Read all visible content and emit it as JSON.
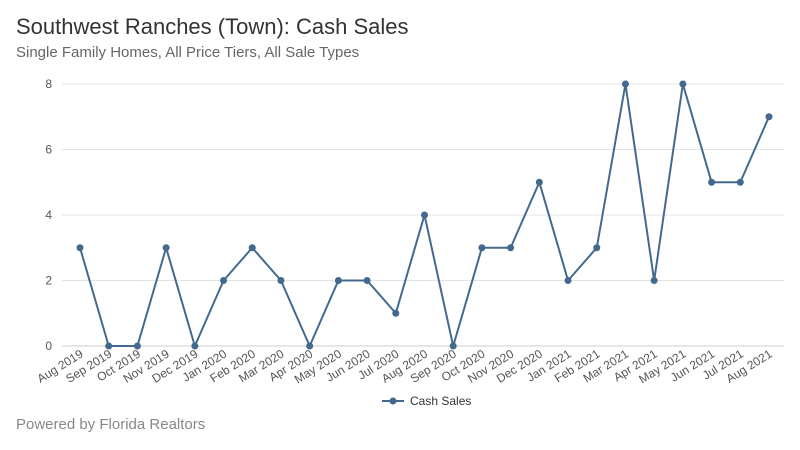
{
  "header": {
    "title": "Southwest Ranches (Town): Cash Sales",
    "subtitle": "Single Family Homes, All Price Tiers, All Sale Types"
  },
  "footer": {
    "text": "Powered by Florida Realtors"
  },
  "colors": {
    "series": "#44698f",
    "grid": "#e3e3e3",
    "axis": "#cccccc"
  },
  "chart_data": {
    "type": "line",
    "title": "Southwest Ranches (Town): Cash Sales",
    "subtitle": "Single Family Homes, All Price Tiers, All Sale Types",
    "xlabel": "",
    "ylabel": "",
    "ylim": [
      0,
      8
    ],
    "yticks": [
      0,
      2,
      4,
      6,
      8
    ],
    "grid": true,
    "legend_position": "bottom",
    "categories": [
      "Aug 2019",
      "Sep 2019",
      "Oct 2019",
      "Nov 2019",
      "Dec 2019",
      "Jan 2020",
      "Feb 2020",
      "Mar 2020",
      "Apr 2020",
      "May 2020",
      "Jun 2020",
      "Jul 2020",
      "Aug 2020",
      "Sep 2020",
      "Oct 2020",
      "Nov 2020",
      "Dec 2020",
      "Jan 2021",
      "Feb 2021",
      "Mar 2021",
      "Apr 2021",
      "May 2021",
      "Jun 2021",
      "Jul 2021",
      "Aug 2021"
    ],
    "series": [
      {
        "name": "Cash Sales",
        "values": [
          3,
          0,
          0,
          3,
          0,
          2,
          3,
          2,
          0,
          2,
          2,
          1,
          4,
          0,
          3,
          3,
          5,
          2,
          3,
          8,
          2,
          8,
          5,
          5,
          7
        ]
      }
    ]
  }
}
